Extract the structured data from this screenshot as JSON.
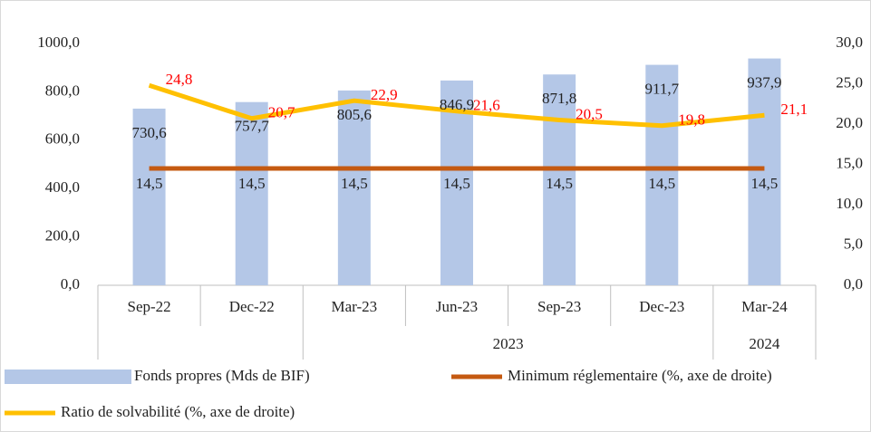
{
  "chart_data": {
    "type": "bar",
    "categories": [
      "Sep-22",
      "Dec-22",
      "Mar-23",
      "Jun-23",
      "Sep-23",
      "Dec-23",
      "Mar-24"
    ],
    "x_groups": [
      null,
      null,
      "2023",
      "2023",
      "2023",
      "2023",
      "2024"
    ],
    "series": [
      {
        "name": "Fonds propres (Mds de BIF)",
        "type": "bar",
        "color": "#b4c7e7",
        "values": [
          730.6,
          757.7,
          805.6,
          846.9,
          871.8,
          911.7,
          937.9
        ],
        "value_labels": [
          "730,6",
          "757,7",
          "805,6",
          "846,9",
          "871,8",
          "911,7",
          "937,9"
        ],
        "label_color": "#222222"
      },
      {
        "name": "Minimum réglementaire (%, axe de droite)",
        "type": "line",
        "axis": "y2",
        "color": "#c55a11",
        "values": [
          14.5,
          14.5,
          14.5,
          14.5,
          14.5,
          14.5,
          14.5
        ],
        "value_labels": [
          "14,5",
          "14,5",
          "14,5",
          "14,5",
          "14,5",
          "14,5",
          "14,5"
        ],
        "label_color": "#222222"
      },
      {
        "name": "Ratio de solvabilité (%, axe de droite)",
        "type": "line",
        "axis": "y2",
        "color": "#ffc000",
        "values": [
          24.8,
          20.7,
          22.9,
          21.6,
          20.5,
          19.8,
          21.1
        ],
        "value_labels": [
          "24,8",
          "20,7",
          "22,9",
          "21,6",
          "20,5",
          "19,8",
          "21,1"
        ],
        "label_color": "#ff0000"
      }
    ],
    "ylim": [
      0,
      1000
    ],
    "yticks": [
      {
        "value": 0,
        "label": "0,0"
      },
      {
        "value": 200,
        "label": "200,0"
      },
      {
        "value": 400,
        "label": "400,0"
      },
      {
        "value": 600,
        "label": "600,0"
      },
      {
        "value": 800,
        "label": "800,0"
      },
      {
        "value": 1000,
        "label": "1000,0"
      }
    ],
    "y2lim": [
      0,
      30
    ],
    "y2ticks": [
      {
        "value": 0,
        "label": "0,0"
      },
      {
        "value": 5,
        "label": "5,0"
      },
      {
        "value": 10,
        "label": "10,0"
      },
      {
        "value": 15,
        "label": "15,0"
      },
      {
        "value": 20,
        "label": "20,0"
      },
      {
        "value": 25,
        "label": "25,0"
      },
      {
        "value": 30,
        "label": "30,0"
      }
    ],
    "grid": false
  }
}
